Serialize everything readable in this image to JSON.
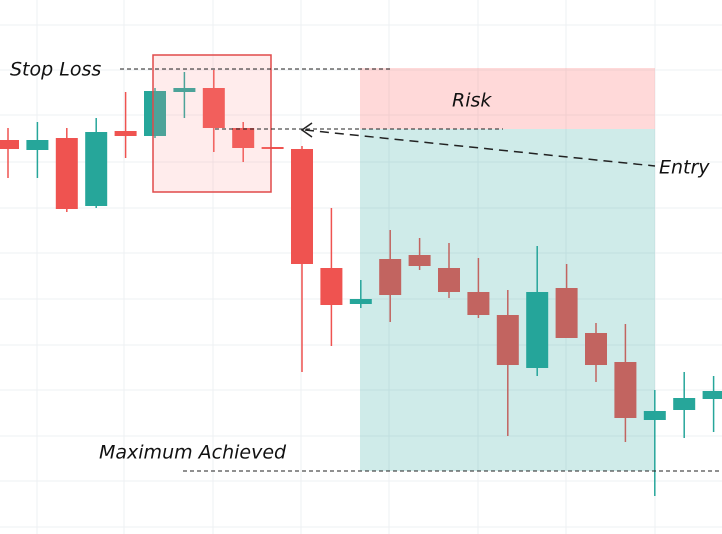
{
  "chart_data": {
    "type": "candlestick",
    "ylim": [
      0,
      534
    ],
    "up_color": "#26a69a",
    "down_color": "#ef5350",
    "open": [
      394,
      384,
      396,
      328,
      403,
      398,
      442,
      446,
      406,
      387,
      385,
      266,
      230,
      275,
      279,
      266,
      242,
      219,
      166,
      246,
      201,
      172,
      114,
      124,
      135
    ],
    "high": [
      406,
      412,
      406,
      416,
      442,
      446,
      462,
      464,
      412,
      387,
      388,
      326,
      254,
      304,
      296,
      291,
      276,
      244,
      288,
      270,
      211,
      210,
      144,
      162,
      158
    ],
    "low": [
      356,
      356,
      322,
      326,
      376,
      396,
      416,
      382,
      372,
      385,
      162,
      188,
      226,
      212,
      264,
      236,
      216,
      98,
      158,
      196,
      152,
      92,
      38,
      96,
      102
    ],
    "close": [
      385,
      394,
      325,
      402,
      398,
      443,
      446,
      406,
      386,
      385,
      270,
      229,
      235,
      239,
      268,
      242,
      219,
      169,
      242,
      196,
      169,
      116,
      123,
      136,
      143
    ],
    "annotations": [
      "Stop Loss",
      "Risk",
      "Entry",
      "Maximum Achieved"
    ]
  }
}
